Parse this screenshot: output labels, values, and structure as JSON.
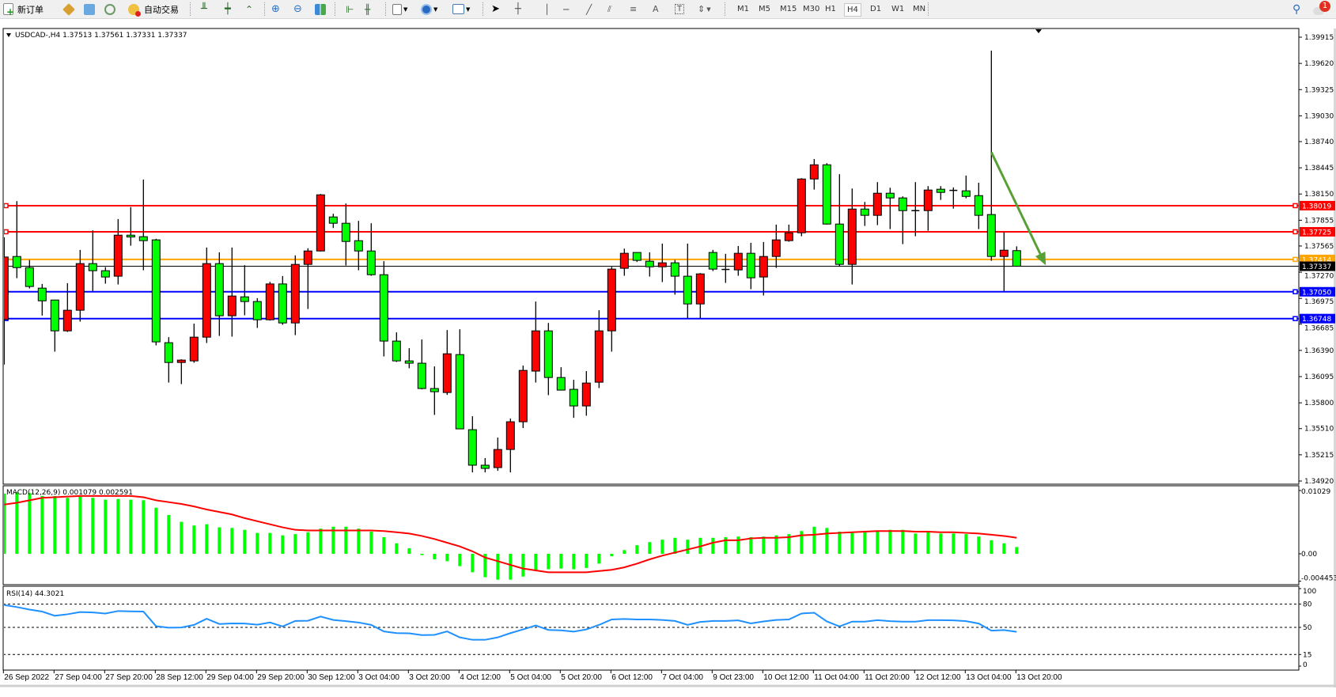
{
  "toolbar": {
    "new_order_label": "新订单",
    "auto_trade_label": "自动交易",
    "icons": [
      "new-order-icon",
      "market-watch-icon",
      "data-window-icon",
      "signals-icon",
      "auto-trading-icon",
      "bar-chart-icon",
      "candlestick-icon",
      "line-chart-icon",
      "zoom-in-icon",
      "zoom-out-icon",
      "tile-windows-icon",
      "chart-shift-icon",
      "autoscroll-icon",
      "indicators-icon",
      "periods-icon",
      "templates-icon",
      "cursor-icon",
      "crosshair-icon",
      "vertical-line-icon",
      "horizontal-line-icon",
      "trendline-icon",
      "equidistant-channel-icon",
      "fibonacci-icon",
      "text-icon",
      "text-label-icon",
      "arrows-icon"
    ],
    "text_tool_label": "A",
    "timeframes": [
      "M1",
      "M5",
      "M15",
      "M30",
      "H1",
      "H4",
      "D1",
      "W1",
      "MN"
    ],
    "active_timeframe": "H4",
    "notification_count": "1"
  },
  "chart": {
    "symbol_header": "USDCAD-,H4  1.37513 1.37561 1.37331 1.37337",
    "current_price": "1.37337",
    "colors": {
      "bull": "#ff0000",
      "bear": "#00ff00",
      "macd_hist": "#00ff00",
      "macd_signal": "#ff0000",
      "rsi": "#1e90ff",
      "arrow": "#58a035"
    },
    "price_axis": [
      "1.39915",
      "1.39620",
      "1.39325",
      "1.39030",
      "1.38740",
      "1.38445",
      "1.38150",
      "1.37855",
      "1.37565",
      "1.37270",
      "1.36975",
      "1.36685",
      "1.36390",
      "1.36095",
      "1.35800",
      "1.35510",
      "1.35215",
      "1.34920"
    ],
    "horizontal_lines": [
      {
        "price": "1.38019",
        "color": "#ff0000"
      },
      {
        "price": "1.37725",
        "color": "#ff0000"
      },
      {
        "price": "1.37414",
        "color": "#ffa500"
      },
      {
        "price": "1.37050",
        "color": "#0000ff"
      },
      {
        "price": "1.36748",
        "color": "#0000ff"
      }
    ],
    "time_axis": [
      "26 Sep 2022",
      "27 Sep 04:00",
      "27 Sep 20:00",
      "28 Sep 12:00",
      "29 Sep 04:00",
      "29 Sep 20:00",
      "30 Sep 12:00",
      "3 Oct 04:00",
      "3 Oct 20:00",
      "4 Oct 12:00",
      "5 Oct 04:00",
      "5 Oct 20:00",
      "6 Oct 12:00",
      "7 Oct 04:00",
      "9 Oct 23:00",
      "10 Oct 12:00",
      "11 Oct 04:00",
      "11 Oct 20:00",
      "12 Oct 12:00",
      "13 Oct 04:00",
      "13 Oct 20:00"
    ],
    "arrow": {
      "from_price": 1.3862,
      "to_price": 1.37347,
      "from_bar": 78,
      "to_bar": 82.3
    }
  },
  "chart_data": {
    "type": "candlestick",
    "ohlc": [
      [
        1.36738,
        1.37663,
        1.3623,
        1.37441
      ],
      [
        1.37447,
        1.3807,
        1.37203,
        1.37322
      ],
      [
        1.37322,
        1.37408,
        1.37087,
        1.37109
      ],
      [
        1.37091,
        1.37138,
        1.36782,
        1.36948
      ],
      [
        1.36957,
        1.3696,
        1.36376,
        1.3661
      ],
      [
        1.3661,
        1.37147,
        1.36598,
        1.36842
      ],
      [
        1.36842,
        1.37521,
        1.36714,
        1.37367
      ],
      [
        1.37367,
        1.37741,
        1.37058,
        1.37287
      ],
      [
        1.37287,
        1.37328,
        1.37141,
        1.37216
      ],
      [
        1.37225,
        1.37868,
        1.37132,
        1.37687
      ],
      [
        1.37687,
        1.38003,
        1.37568,
        1.37666
      ],
      [
        1.3767,
        1.38313,
        1.37292,
        1.37625
      ],
      [
        1.37634,
        1.37646,
        1.36447,
        1.36486
      ],
      [
        1.36477,
        1.36539,
        1.36028,
        1.36254
      ],
      [
        1.36254,
        1.3629,
        1.36011,
        1.36281
      ],
      [
        1.36272,
        1.36691,
        1.36251,
        1.36539
      ],
      [
        1.36539,
        1.37548,
        1.36473,
        1.37367
      ],
      [
        1.37367,
        1.37494,
        1.36553,
        1.3678
      ],
      [
        1.3678,
        1.37548,
        1.36545,
        1.37002
      ],
      [
        1.36993,
        1.37349,
        1.36785,
        1.3694
      ],
      [
        1.3694,
        1.36978,
        1.36643,
        1.36735
      ],
      [
        1.36735,
        1.37162,
        1.36726,
        1.37138
      ],
      [
        1.37138,
        1.37227,
        1.36678,
        1.36699
      ],
      [
        1.36699,
        1.37459,
        1.36562,
        1.37358
      ],
      [
        1.37358,
        1.37539,
        1.36856,
        1.37509
      ],
      [
        1.37509,
        1.3815,
        1.37503,
        1.38141
      ],
      [
        1.37892,
        1.37928,
        1.37767,
        1.37821
      ],
      [
        1.37821,
        1.38043,
        1.37346,
        1.37616
      ],
      [
        1.37625,
        1.37848,
        1.37292,
        1.37509
      ],
      [
        1.37509,
        1.37821,
        1.3723,
        1.37242
      ],
      [
        1.37242,
        1.37394,
        1.36322,
        1.36495
      ],
      [
        1.36495,
        1.36593,
        1.3626,
        1.36272
      ],
      [
        1.36272,
        1.36415,
        1.36189,
        1.36246
      ],
      [
        1.36246,
        1.36513,
        1.35952,
        1.35961
      ],
      [
        1.35961,
        1.3621,
        1.35664,
        1.35925
      ],
      [
        1.35916,
        1.36619,
        1.3589,
        1.36352
      ],
      [
        1.36343,
        1.36628,
        1.35507,
        1.35507
      ],
      [
        1.35498,
        1.35649,
        1.35017,
        1.35098
      ],
      [
        1.35098,
        1.35178,
        1.35017,
        1.35062
      ],
      [
        1.35071,
        1.35409,
        1.35035,
        1.35275
      ],
      [
        1.35275,
        1.35623,
        1.35017,
        1.35587
      ],
      [
        1.35587,
        1.36219,
        1.35516,
        1.36165
      ],
      [
        1.36157,
        1.3694,
        1.36028,
        1.3661
      ],
      [
        1.3661,
        1.36699,
        1.35886,
        1.36085
      ],
      [
        1.36085,
        1.36201,
        1.35943,
        1.35943
      ],
      [
        1.35952,
        1.36059,
        1.35631,
        1.35765
      ],
      [
        1.35765,
        1.36157,
        1.35655,
        1.36023
      ],
      [
        1.36032,
        1.36842,
        1.35966,
        1.3661
      ],
      [
        1.3661,
        1.37331,
        1.36376,
        1.37305
      ],
      [
        1.37314,
        1.37536,
        1.3723,
        1.37483
      ],
      [
        1.37492,
        1.37492,
        1.37385,
        1.37403
      ],
      [
        1.37394,
        1.37494,
        1.37221,
        1.37331
      ],
      [
        1.37331,
        1.37592,
        1.37159,
        1.37376
      ],
      [
        1.37376,
        1.37408,
        1.37017,
        1.37225
      ],
      [
        1.37225,
        1.37592,
        1.36753,
        1.36913
      ],
      [
        1.36913,
        1.3726,
        1.36753,
        1.37251
      ],
      [
        1.37492,
        1.37521,
        1.37283,
        1.37305
      ],
      [
        1.37301,
        1.37477,
        1.3715,
        1.37301
      ],
      [
        1.37296,
        1.37565,
        1.3723,
        1.37483
      ],
      [
        1.37483,
        1.37601,
        1.37079,
        1.37207
      ],
      [
        1.37216,
        1.3761,
        1.37008,
        1.37447
      ],
      [
        1.37447,
        1.37806,
        1.37319,
        1.37634
      ],
      [
        1.37625,
        1.37806,
        1.37613,
        1.37714
      ],
      [
        1.37714,
        1.38328,
        1.37675,
        1.38319
      ],
      [
        1.38319,
        1.38544,
        1.382,
        1.38479
      ],
      [
        1.38479,
        1.38497,
        1.37806,
        1.37812
      ],
      [
        1.37812,
        1.38373,
        1.37331,
        1.37358
      ],
      [
        1.37358,
        1.38212,
        1.37132,
        1.37981
      ],
      [
        1.37981,
        1.38061,
        1.37791,
        1.3791
      ],
      [
        1.3791,
        1.38284,
        1.378,
        1.38159
      ],
      [
        1.38159,
        1.38221,
        1.37755,
        1.38106
      ],
      [
        1.38106,
        1.38123,
        1.37586,
        1.37963
      ],
      [
        1.37963,
        1.38284,
        1.37675,
        1.37963
      ],
      [
        1.37963,
        1.38239,
        1.37737,
        1.38195
      ],
      [
        1.38204,
        1.38239,
        1.38084,
        1.38168
      ],
      [
        1.38191,
        1.38224,
        1.37986,
        1.38191
      ],
      [
        1.38186,
        1.38358,
        1.38102,
        1.38123
      ],
      [
        1.38132,
        1.38277,
        1.37755,
        1.3791
      ],
      [
        1.37919,
        1.39764,
        1.37399,
        1.37447
      ],
      [
        1.37447,
        1.37723,
        1.37058,
        1.37518
      ],
      [
        1.37513,
        1.37561,
        1.37331,
        1.37337
      ]
    ],
    "ylim": [
      1.3492,
      1.39915
    ],
    "macd": {
      "label": "MACD(12,26,9) 0.001079 0.002591",
      "axis": [
        "0.01029",
        "0.00",
        "-0.004453"
      ],
      "ylim": [
        -0.004453,
        0.01029
      ],
      "histogram": [
        0.0098,
        0.01,
        0.0099,
        0.0094,
        0.0094,
        0.0091,
        0.0093,
        0.0091,
        0.0088,
        0.0089,
        0.0088,
        0.0087,
        0.0075,
        0.0063,
        0.0052,
        0.0046,
        0.0048,
        0.0043,
        0.0042,
        0.0039,
        0.0034,
        0.0034,
        0.003,
        0.0032,
        0.0035,
        0.0041,
        0.0044,
        0.0044,
        0.0041,
        0.0036,
        0.0027,
        0.0017,
        0.0009,
        -0.0002,
        -0.0009,
        -0.0012,
        -0.002,
        -0.003,
        -0.0038,
        -0.0042,
        -0.0042,
        -0.0037,
        -0.0027,
        -0.0025,
        -0.0024,
        -0.0025,
        -0.0023,
        -0.0016,
        -0.0004,
        0.0006,
        0.0014,
        0.0019,
        0.0023,
        0.0026,
        0.0023,
        0.0026,
        0.0026,
        0.0027,
        0.0028,
        0.0027,
        0.0028,
        0.003,
        0.0032,
        0.0037,
        0.0044,
        0.0042,
        0.0036,
        0.0036,
        0.0036,
        0.0037,
        0.0039,
        0.0039,
        0.0033,
        0.0035,
        0.0033,
        0.0033,
        0.0032,
        0.0028,
        0.0022,
        0.0017,
        0.0011
      ],
      "signal": [
        0.008,
        0.0083,
        0.0087,
        0.0091,
        0.0092,
        0.0093,
        0.0094,
        0.0094,
        0.0094,
        0.0094,
        0.0094,
        0.0092,
        0.0087,
        0.0084,
        0.0081,
        0.0077,
        0.0072,
        0.0068,
        0.0064,
        0.0058,
        0.0053,
        0.0048,
        0.0043,
        0.0039,
        0.0038,
        0.0038,
        0.0038,
        0.0038,
        0.0038,
        0.0038,
        0.0037,
        0.0035,
        0.0033,
        0.0029,
        0.0024,
        0.0018,
        0.0012,
        0.0004,
        -0.0006,
        -0.0012,
        -0.0018,
        -0.0024,
        -0.0027,
        -0.003,
        -0.003,
        -0.003,
        -0.003,
        -0.0028,
        -0.0026,
        -0.0022,
        -0.0016,
        -0.0009,
        -0.0003,
        0.0002,
        0.0007,
        0.0012,
        0.0018,
        0.0022,
        0.0022,
        0.0025,
        0.0026,
        0.0026,
        0.0027,
        0.003,
        0.0031,
        0.0033,
        0.0034,
        0.0035,
        0.0036,
        0.0037,
        0.0037,
        0.0037,
        0.0036,
        0.0036,
        0.0035,
        0.0035,
        0.0034,
        0.0033,
        0.0031,
        0.0029,
        0.0026
      ]
    },
    "rsi": {
      "label": "RSI(14) 44.3021",
      "axis": [
        "100",
        "80",
        "50",
        "15",
        "0"
      ],
      "levels": [
        80,
        50,
        15
      ],
      "ylim": [
        0,
        100
      ],
      "values": [
        78.8,
        76.2,
        73.0,
        70.4,
        65.0,
        66.9,
        69.8,
        69.2,
        67.9,
        71.1,
        70.7,
        70.4,
        51.5,
        49.6,
        49.9,
        53.2,
        61.1,
        54.4,
        55.1,
        55.0,
        53.5,
        56.3,
        51.2,
        58.3,
        58.6,
        64.0,
        59.6,
        58.0,
        56.3,
        53.2,
        44.8,
        42.6,
        42.3,
        40.0,
        40.3,
        44.8,
        37.1,
        34.0,
        34.0,
        37.1,
        42.6,
        47.4,
        52.5,
        46.7,
        46.2,
        44.5,
        47.4,
        53.2,
        60.2,
        60.9,
        60.2,
        60.2,
        59.6,
        58.3,
        53.2,
        57.0,
        58.3,
        58.3,
        59.0,
        55.1,
        57.7,
        59.6,
        60.2,
        67.9,
        68.9,
        57.7,
        51.2,
        57.4,
        57.4,
        59.3,
        58.0,
        57.4,
        57.4,
        59.3,
        59.3,
        59.0,
        58.0,
        55.0,
        45.8,
        46.5,
        44.3
      ]
    }
  }
}
